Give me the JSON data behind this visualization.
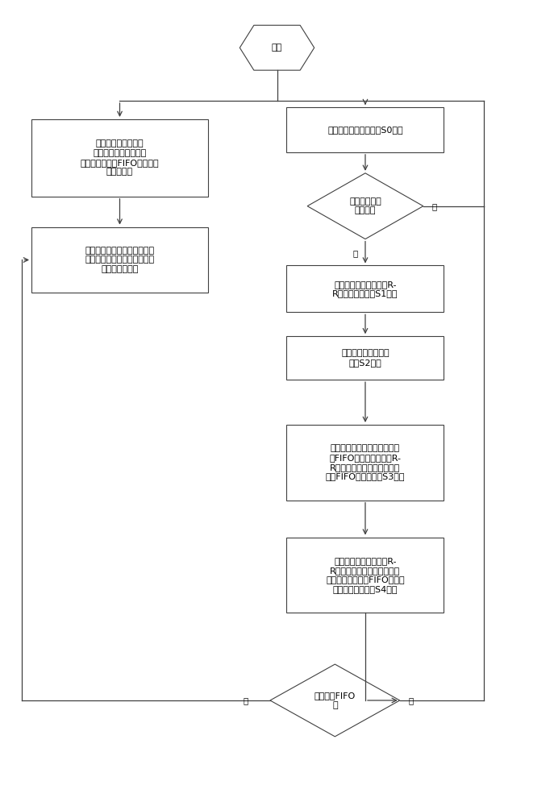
{
  "fig_width": 6.87,
  "fig_height": 10.0,
  "bg_color": "#ffffff",
  "box_fc": "#ffffff",
  "box_ec": "#404040",
  "lc": "#404040",
  "font_size": 8.0,
  "entry_label": "入口",
  "left_box1_label": "优先级寄存器组根据\n发送数据使能寄存器和\n发送数据优先级FIFO组设定组\n内元素的值",
  "left_box2_label": "选出优先级寄存器组中优先级\n最高的有效行，将其存入优先\n级请求寄存器中",
  "right_box1_label": "优先级调度状态机处于S0状态",
  "diamond1_label": "优先级请求寄\n存器有效",
  "right_box2_label": "优先级调度状态机启动R-\nR调度器，跳转到S1状态",
  "right_box3_label": "优先级调度状态机跳\n转到S2状态",
  "right_box4_label": "优先级调度状态机产生调度结\n果FIFO写使能信号，将R-\nR调度器输出的结果写入调度\n结果FIFO中，跳转到S3状态",
  "right_box5_label": "优先级调度状态机根据R-\nR调度器的输出结果，向对应\n的发送数据优先级FIFO发出读\n清除信号，跳转到S4状态",
  "diamond2_label": "调度结果FIFO\n满",
  "yes_label": "是",
  "no_label": "否"
}
